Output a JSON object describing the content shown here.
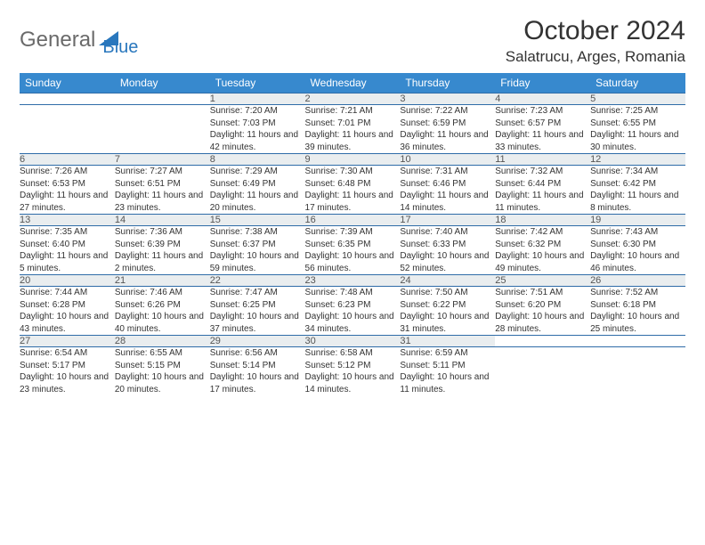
{
  "logo": {
    "text1": "General",
    "text2": "Blue"
  },
  "title": "October 2024",
  "subtitle": "Salatrucu, Arges, Romania",
  "colors": {
    "header_bg": "#3789ce",
    "header_text": "#ffffff",
    "daynum_bg": "#e9edef",
    "border": "#2f6ca8",
    "logo_gray": "#6a6a6a",
    "logo_blue": "#2977bd",
    "text": "#333333"
  },
  "fontsize": {
    "title": 30,
    "subtitle": 17,
    "header": 12,
    "daynum": 11,
    "detail": 10
  },
  "daysOfWeek": [
    "Sunday",
    "Monday",
    "Tuesday",
    "Wednesday",
    "Thursday",
    "Friday",
    "Saturday"
  ],
  "weeks": [
    [
      null,
      null,
      {
        "n": "1",
        "sr": "7:20 AM",
        "ss": "7:03 PM",
        "dl": "11 hours and 42 minutes."
      },
      {
        "n": "2",
        "sr": "7:21 AM",
        "ss": "7:01 PM",
        "dl": "11 hours and 39 minutes."
      },
      {
        "n": "3",
        "sr": "7:22 AM",
        "ss": "6:59 PM",
        "dl": "11 hours and 36 minutes."
      },
      {
        "n": "4",
        "sr": "7:23 AM",
        "ss": "6:57 PM",
        "dl": "11 hours and 33 minutes."
      },
      {
        "n": "5",
        "sr": "7:25 AM",
        "ss": "6:55 PM",
        "dl": "11 hours and 30 minutes."
      }
    ],
    [
      {
        "n": "6",
        "sr": "7:26 AM",
        "ss": "6:53 PM",
        "dl": "11 hours and 27 minutes."
      },
      {
        "n": "7",
        "sr": "7:27 AM",
        "ss": "6:51 PM",
        "dl": "11 hours and 23 minutes."
      },
      {
        "n": "8",
        "sr": "7:29 AM",
        "ss": "6:49 PM",
        "dl": "11 hours and 20 minutes."
      },
      {
        "n": "9",
        "sr": "7:30 AM",
        "ss": "6:48 PM",
        "dl": "11 hours and 17 minutes."
      },
      {
        "n": "10",
        "sr": "7:31 AM",
        "ss": "6:46 PM",
        "dl": "11 hours and 14 minutes."
      },
      {
        "n": "11",
        "sr": "7:32 AM",
        "ss": "6:44 PM",
        "dl": "11 hours and 11 minutes."
      },
      {
        "n": "12",
        "sr": "7:34 AM",
        "ss": "6:42 PM",
        "dl": "11 hours and 8 minutes."
      }
    ],
    [
      {
        "n": "13",
        "sr": "7:35 AM",
        "ss": "6:40 PM",
        "dl": "11 hours and 5 minutes."
      },
      {
        "n": "14",
        "sr": "7:36 AM",
        "ss": "6:39 PM",
        "dl": "11 hours and 2 minutes."
      },
      {
        "n": "15",
        "sr": "7:38 AM",
        "ss": "6:37 PM",
        "dl": "10 hours and 59 minutes."
      },
      {
        "n": "16",
        "sr": "7:39 AM",
        "ss": "6:35 PM",
        "dl": "10 hours and 56 minutes."
      },
      {
        "n": "17",
        "sr": "7:40 AM",
        "ss": "6:33 PM",
        "dl": "10 hours and 52 minutes."
      },
      {
        "n": "18",
        "sr": "7:42 AM",
        "ss": "6:32 PM",
        "dl": "10 hours and 49 minutes."
      },
      {
        "n": "19",
        "sr": "7:43 AM",
        "ss": "6:30 PM",
        "dl": "10 hours and 46 minutes."
      }
    ],
    [
      {
        "n": "20",
        "sr": "7:44 AM",
        "ss": "6:28 PM",
        "dl": "10 hours and 43 minutes."
      },
      {
        "n": "21",
        "sr": "7:46 AM",
        "ss": "6:26 PM",
        "dl": "10 hours and 40 minutes."
      },
      {
        "n": "22",
        "sr": "7:47 AM",
        "ss": "6:25 PM",
        "dl": "10 hours and 37 minutes."
      },
      {
        "n": "23",
        "sr": "7:48 AM",
        "ss": "6:23 PM",
        "dl": "10 hours and 34 minutes."
      },
      {
        "n": "24",
        "sr": "7:50 AM",
        "ss": "6:22 PM",
        "dl": "10 hours and 31 minutes."
      },
      {
        "n": "25",
        "sr": "7:51 AM",
        "ss": "6:20 PM",
        "dl": "10 hours and 28 minutes."
      },
      {
        "n": "26",
        "sr": "7:52 AM",
        "ss": "6:18 PM",
        "dl": "10 hours and 25 minutes."
      }
    ],
    [
      {
        "n": "27",
        "sr": "6:54 AM",
        "ss": "5:17 PM",
        "dl": "10 hours and 23 minutes."
      },
      {
        "n": "28",
        "sr": "6:55 AM",
        "ss": "5:15 PM",
        "dl": "10 hours and 20 minutes."
      },
      {
        "n": "29",
        "sr": "6:56 AM",
        "ss": "5:14 PM",
        "dl": "10 hours and 17 minutes."
      },
      {
        "n": "30",
        "sr": "6:58 AM",
        "ss": "5:12 PM",
        "dl": "10 hours and 14 minutes."
      },
      {
        "n": "31",
        "sr": "6:59 AM",
        "ss": "5:11 PM",
        "dl": "10 hours and 11 minutes."
      },
      null,
      null
    ]
  ],
  "labels": {
    "sunrise": "Sunrise: ",
    "sunset": "Sunset: ",
    "daylight": "Daylight: "
  }
}
